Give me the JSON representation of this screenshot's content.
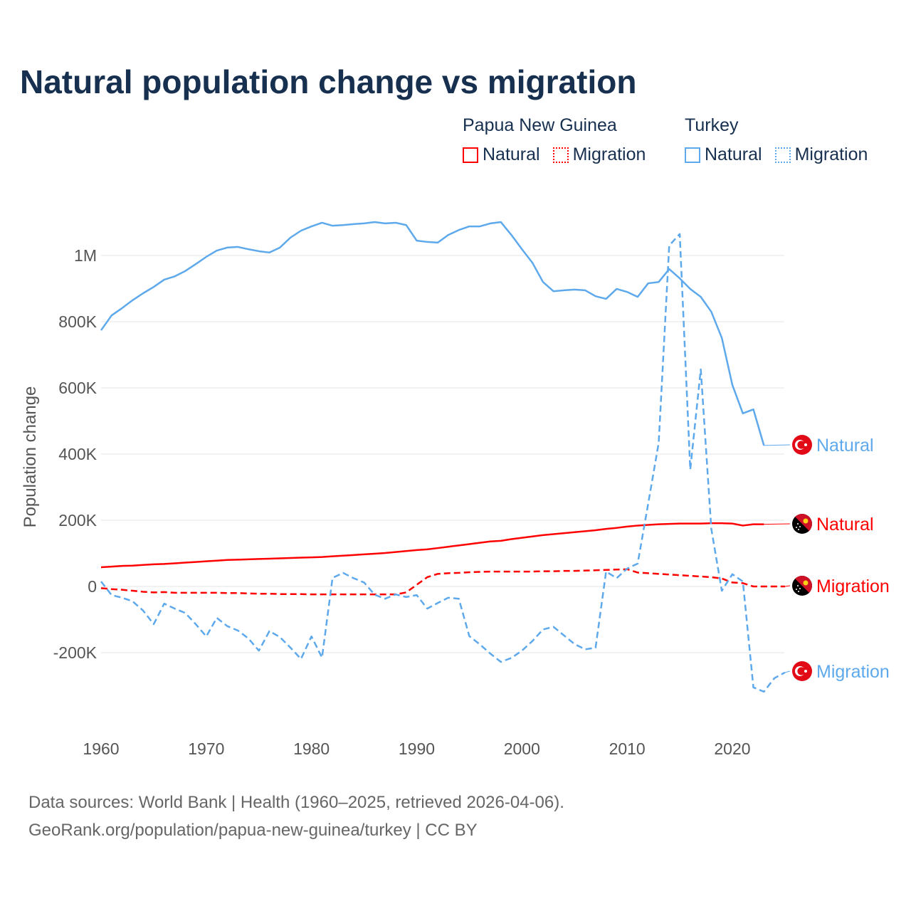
{
  "title": "Natural population change vs migration",
  "legend": [
    {
      "group": "Papua New Guinea",
      "items": [
        {
          "label": "Natural",
          "color": "#ff0000",
          "style": "solid"
        },
        {
          "label": "Migration",
          "color": "#ff0000",
          "style": "dotted"
        }
      ]
    },
    {
      "group": "Turkey",
      "items": [
        {
          "label": "Natural",
          "color": "#5ea9ec",
          "style": "solid"
        },
        {
          "label": "Migration",
          "color": "#5ea9ec",
          "style": "dotted"
        }
      ]
    }
  ],
  "source": {
    "line1": "Data sources: World Bank | Health (1960–2025, retrieved 2026-04-06).",
    "line2": "GeoRank.org/population/papua-new-guinea/turkey | CC BY"
  },
  "chart_data": {
    "type": "line",
    "title": "Natural population change vs migration",
    "xlabel": "",
    "ylabel": "Population change",
    "xlim": [
      1960,
      2025
    ],
    "ylim": [
      -350000,
      1150000
    ],
    "xticks": [
      1960,
      1970,
      1980,
      1990,
      2000,
      2010,
      2020
    ],
    "xtick_labels": [
      "1960",
      "1970",
      "1980",
      "1990",
      "2000",
      "2010",
      "2020"
    ],
    "yticks": [
      -200000,
      0,
      200000,
      400000,
      600000,
      800000,
      1000000
    ],
    "ytick_labels": [
      "-200K",
      "0",
      "200K",
      "400K",
      "600K",
      "800K",
      "1M"
    ],
    "grid": true,
    "series": [
      {
        "name": "Turkey Natural",
        "country": "Turkey",
        "end_label": "Natural",
        "color": "#5ea9ec",
        "dash": false,
        "flag": "turkey-flag",
        "start": 1960,
        "values": [
          774,
          819,
          841,
          865,
          886,
          905,
          927,
          937,
          953,
          974,
          996,
          1015,
          1024,
          1026,
          1019,
          1013,
          1009,
          1024,
          1054,
          1075,
          1088,
          1099,
          1090,
          1092,
          1095,
          1097,
          1101,
          1097,
          1099,
          1092,
          1045,
          1041,
          1039,
          1062,
          1077,
          1088,
          1088,
          1097,
          1101,
          1062,
          1019,
          978,
          920,
          892,
          895,
          897,
          895,
          877,
          869,
          899,
          890,
          875,
          916,
          920,
          959,
          931,
          899,
          875,
          830,
          751,
          609,
          523,
          535,
          426
        ]
      },
      {
        "name": "Papua New Guinea Natural",
        "country": "Papua New Guinea",
        "end_label": "Natural",
        "color": "#ff0000",
        "dash": false,
        "flag": "png-flag",
        "start": 1960,
        "values": [
          58,
          60,
          62,
          63,
          65,
          67,
          68,
          70,
          72,
          74,
          76,
          78,
          80,
          81,
          82,
          83,
          84,
          85,
          86,
          87,
          88,
          89,
          91,
          93,
          95,
          97,
          99,
          101,
          104,
          107,
          110,
          112,
          116,
          120,
          124,
          128,
          132,
          136,
          138,
          143,
          147,
          151,
          155,
          158,
          161,
          164,
          167,
          170,
          174,
          177,
          181,
          184,
          186,
          188,
          189,
          190,
          190,
          190,
          191,
          191,
          190,
          184,
          188,
          188
        ]
      },
      {
        "name": "Papua New Guinea Migration",
        "country": "Papua New Guinea",
        "end_label": "Migration",
        "color": "#ff0000",
        "dash": true,
        "flag": "png-flag",
        "start": 1960,
        "values": [
          -5,
          -8,
          -10,
          -13,
          -16,
          -18,
          -17,
          -19,
          -19,
          -19,
          -19,
          -19,
          -20,
          -20,
          -21,
          -22,
          -22,
          -23,
          -23,
          -23,
          -24,
          -24,
          -24,
          -24,
          -24,
          -24,
          -24,
          -24,
          -24,
          -18,
          5,
          28,
          38,
          40,
          41,
          43,
          44,
          45,
          45,
          45,
          45,
          45,
          46,
          46,
          47,
          47,
          48,
          49,
          50,
          51,
          52,
          42,
          40,
          38,
          36,
          34,
          32,
          30,
          28,
          24,
          12,
          10,
          0,
          0,
          0,
          0
        ]
      },
      {
        "name": "Turkey Migration",
        "country": "Turkey",
        "end_label": "Migration",
        "color": "#5ea9ec",
        "dash": true,
        "flag": "turkey-flag",
        "start": 1960,
        "values": [
          15,
          -26,
          -34,
          -45,
          -73,
          -114,
          -52,
          -67,
          -80,
          -114,
          -151,
          -95,
          -120,
          -133,
          -157,
          -194,
          -135,
          -153,
          -185,
          -219,
          -151,
          -215,
          26,
          41,
          25,
          12,
          -25,
          -37,
          -24,
          -32,
          -26,
          -67,
          -50,
          -34,
          -37,
          -150,
          -175,
          -203,
          -228,
          -216,
          -194,
          -165,
          -130,
          -122,
          -148,
          -174,
          -190,
          -185,
          45,
          25,
          54,
          69,
          250,
          434,
          1030,
          1065,
          353,
          656,
          174,
          -13,
          37,
          15,
          -305,
          -318,
          -277,
          -260
        ]
      }
    ],
    "value_unit": "thousands"
  }
}
